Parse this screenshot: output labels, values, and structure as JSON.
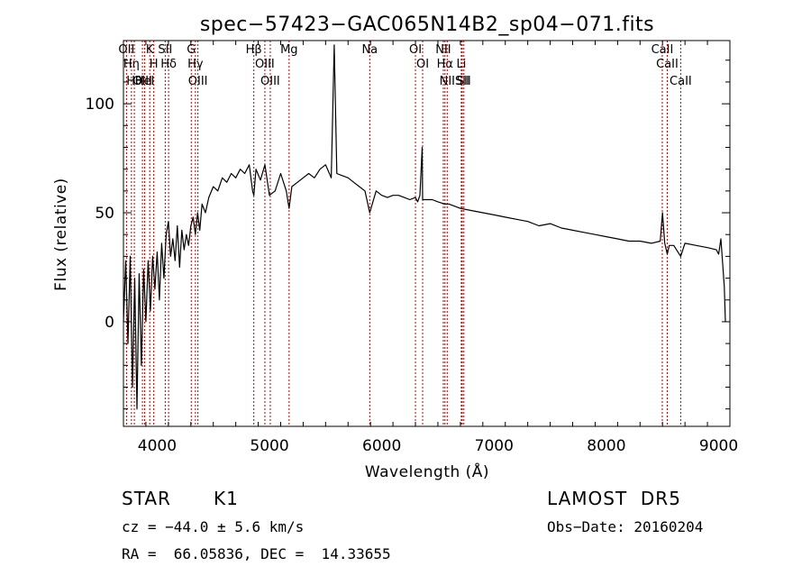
{
  "chart_data": {
    "type": "line",
    "title": "spec−57423−GAC065N14B2_sp04−071.fits",
    "xlabel": "Wavelength (Å)",
    "ylabel": "Flux (relative)",
    "xlim": [
      3700,
      9100
    ],
    "ylim": [
      -48,
      129
    ],
    "x_ticks": [
      4000,
      5000,
      6000,
      7000,
      8000,
      9000
    ],
    "y_ticks": [
      0,
      50,
      100
    ],
    "grid": false,
    "series": [
      {
        "x": [
          3700,
          3720,
          3740,
          3760,
          3780,
          3800,
          3820,
          3840,
          3860,
          3880,
          3900,
          3920,
          3940,
          3960,
          3980,
          4000,
          4020,
          4040,
          4060,
          4080,
          4100,
          4120,
          4140,
          4160,
          4180,
          4200,
          4220,
          4240,
          4260,
          4280,
          4300,
          4320,
          4340,
          4360,
          4380,
          4400,
          4430,
          4460,
          4500,
          4540,
          4580,
          4620,
          4660,
          4700,
          4740,
          4780,
          4820,
          4850,
          4861,
          4880,
          4920,
          4960,
          5000,
          5050,
          5100,
          5150,
          5175,
          5200,
          5250,
          5300,
          5350,
          5400,
          5450,
          5500,
          5550,
          5577,
          5600,
          5650,
          5700,
          5750,
          5800,
          5850,
          5893,
          5950,
          6000,
          6050,
          6100,
          6150,
          6200,
          6250,
          6300,
          6320,
          6340,
          6360,
          6364,
          6380,
          6450,
          6500,
          6563,
          6600,
          6650,
          6700,
          6800,
          6900,
          7000,
          7100,
          7200,
          7300,
          7400,
          7500,
          7600,
          7700,
          7800,
          7900,
          8000,
          8100,
          8200,
          8300,
          8400,
          8480,
          8500,
          8520,
          8542,
          8560,
          8600,
          8662,
          8700,
          8800,
          8900,
          8980,
          9000,
          9020,
          9050,
          9060
        ],
        "values": [
          0,
          28,
          -10,
          30,
          -30,
          20,
          -40,
          22,
          -20,
          24,
          0,
          28,
          5,
          30,
          15,
          32,
          10,
          36,
          20,
          40,
          46,
          30,
          38,
          28,
          44,
          25,
          42,
          33,
          40,
          35,
          44,
          48,
          40,
          50,
          42,
          54,
          50,
          57,
          62,
          60,
          66,
          64,
          68,
          66,
          70,
          68,
          72,
          60,
          58,
          70,
          65,
          72,
          58,
          60,
          68,
          60,
          52,
          62,
          64,
          66,
          68,
          66,
          70,
          72,
          66,
          127,
          68,
          67,
          66,
          64,
          62,
          60,
          50,
          60,
          58,
          57,
          58,
          58,
          57,
          56,
          57,
          55,
          58,
          80,
          56,
          56,
          56,
          55,
          54,
          54,
          53,
          52,
          51,
          50,
          49,
          48,
          47,
          46,
          44,
          45,
          43,
          42,
          41,
          40,
          39,
          38,
          37,
          37,
          36,
          37,
          50,
          36,
          31,
          35,
          35,
          30,
          36,
          35,
          34,
          33,
          31,
          38,
          16,
          0
        ]
      }
    ],
    "lines": [
      {
        "x": 3727,
        "labels": [
          "OII"
        ]
      },
      {
        "x": 3771,
        "labels": [
          "Hη"
        ]
      },
      {
        "x": 3797,
        "labels": [
          "Hθ"
        ]
      },
      {
        "x": 3869,
        "labels": [
          "OIII"
        ]
      },
      {
        "x": 3889,
        "labels": [
          "HeI"
        ]
      },
      {
        "x": 3934,
        "labels": [
          "K"
        ]
      },
      {
        "x": 3970,
        "labels": [
          "H"
        ]
      },
      {
        "x": 4072,
        "labels": [
          "SII"
        ]
      },
      {
        "x": 4102,
        "labels": [
          "Hδ"
        ]
      },
      {
        "x": 4304,
        "labels": [
          "G"
        ]
      },
      {
        "x": 4341,
        "labels": [
          "Hγ"
        ]
      },
      {
        "x": 4363,
        "labels": [
          "OIII"
        ]
      },
      {
        "x": 4861,
        "labels": [
          "Hβ"
        ]
      },
      {
        "x": 4959,
        "labels": [
          "OIII"
        ]
      },
      {
        "x": 5007,
        "labels": [
          "OIII"
        ]
      },
      {
        "x": 5175,
        "labels": [
          "Mg"
        ]
      },
      {
        "x": 5893,
        "labels": [
          "Na"
        ]
      },
      {
        "x": 6300,
        "labels": [
          "OI"
        ]
      },
      {
        "x": 6364,
        "labels": [
          "OI"
        ]
      },
      {
        "x": 6548,
        "labels": [
          "NII"
        ]
      },
      {
        "x": 6563,
        "labels": [
          "Hα"
        ]
      },
      {
        "x": 6583,
        "labels": [
          "NII"
        ]
      },
      {
        "x": 6708,
        "labels": [
          "Li"
        ]
      },
      {
        "x": 6716,
        "labels": [
          "SII"
        ]
      },
      {
        "x": 6731,
        "labels": [
          "SII"
        ]
      },
      {
        "x": 8498,
        "labels": [
          "CaII"
        ]
      },
      {
        "x": 8542,
        "labels": [
          "CaII"
        ]
      },
      {
        "x": 8662,
        "labels": [
          "CaII"
        ]
      }
    ],
    "line_color": "#c00000"
  },
  "info": {
    "class": "STAR",
    "subclass": "K1",
    "survey": "LAMOST  DR5",
    "cz": "cz = −44.0 ± 5.6 km/s",
    "obs_date": "Obs−Date: 20160204",
    "coords": "RA =  66.05836, DEC =  14.33655"
  }
}
